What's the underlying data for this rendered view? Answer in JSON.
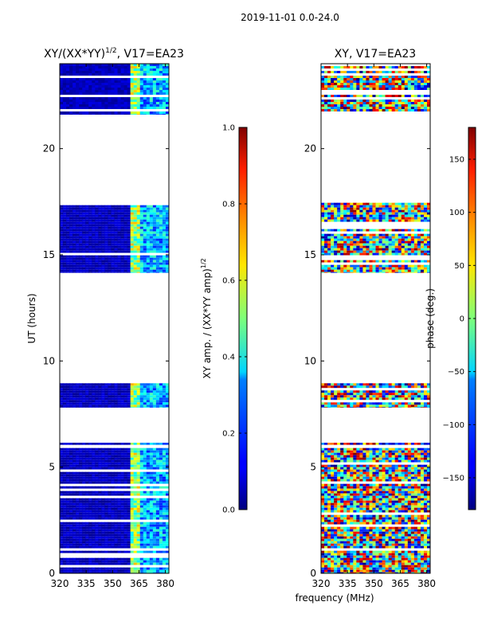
{
  "chart_data": {
    "suptitle": "2019-11-01 0.0-24.0",
    "xlabel": "frequency (MHz)",
    "panels": [
      {
        "type": "heatmap",
        "title_main": "XY/(XX*YY)",
        "title_exp": "1/2",
        "title_rest": ", V17=EA23",
        "ylabel": "UT (hours)",
        "xlim": [
          320,
          382
        ],
        "ylim": [
          0,
          24
        ],
        "xticks": [
          320,
          335,
          350,
          365,
          380
        ],
        "yticks": [
          0,
          5,
          10,
          15,
          20
        ],
        "xtick_labels": [
          "320",
          "335",
          "350",
          "365",
          "380"
        ],
        "ytick_labels": [
          "0",
          "5",
          "10",
          "15",
          "20"
        ],
        "colormap": "jet",
        "data_bands_ut": [
          [
            0.0,
            5.9
          ],
          [
            6.05,
            6.15
          ],
          [
            7.8,
            8.95
          ],
          [
            14.15,
            17.45
          ],
          [
            21.6,
            24.0
          ]
        ],
        "colorbar": {
          "label_main": "XY amp. / (XX*YY amp)",
          "label_exp": "1/2",
          "range": [
            0.0,
            1.0
          ],
          "ticks": [
            0.0,
            0.2,
            0.4,
            0.6,
            0.8,
            1.0
          ],
          "tick_labels": [
            "0.0",
            "0.2",
            "0.4",
            "0.6",
            "0.8",
            "1.0"
          ]
        }
      },
      {
        "type": "heatmap",
        "title": "XY, V17=EA23",
        "xlim": [
          320,
          382
        ],
        "ylim": [
          0,
          24
        ],
        "xticks": [
          320,
          335,
          350,
          365,
          380
        ],
        "yticks": [
          0,
          5,
          10,
          15,
          20
        ],
        "xtick_labels": [
          "320",
          "335",
          "350",
          "365",
          "380"
        ],
        "ytick_labels": [
          "0",
          "5",
          "10",
          "15",
          "20"
        ],
        "colormap": "jet",
        "data_bands_ut": [
          [
            0.0,
            5.9
          ],
          [
            6.05,
            6.15
          ],
          [
            7.8,
            8.95
          ],
          [
            14.15,
            17.45
          ],
          [
            21.6,
            24.0
          ]
        ],
        "colorbar": {
          "label": "phase (deg.)",
          "range": [
            -180,
            180
          ],
          "ticks": [
            -150,
            -100,
            -50,
            0,
            50,
            100,
            150
          ],
          "tick_labels": [
            "−150",
            "−100",
            "−50",
            "0",
            "50",
            "100",
            "150"
          ]
        }
      }
    ]
  }
}
